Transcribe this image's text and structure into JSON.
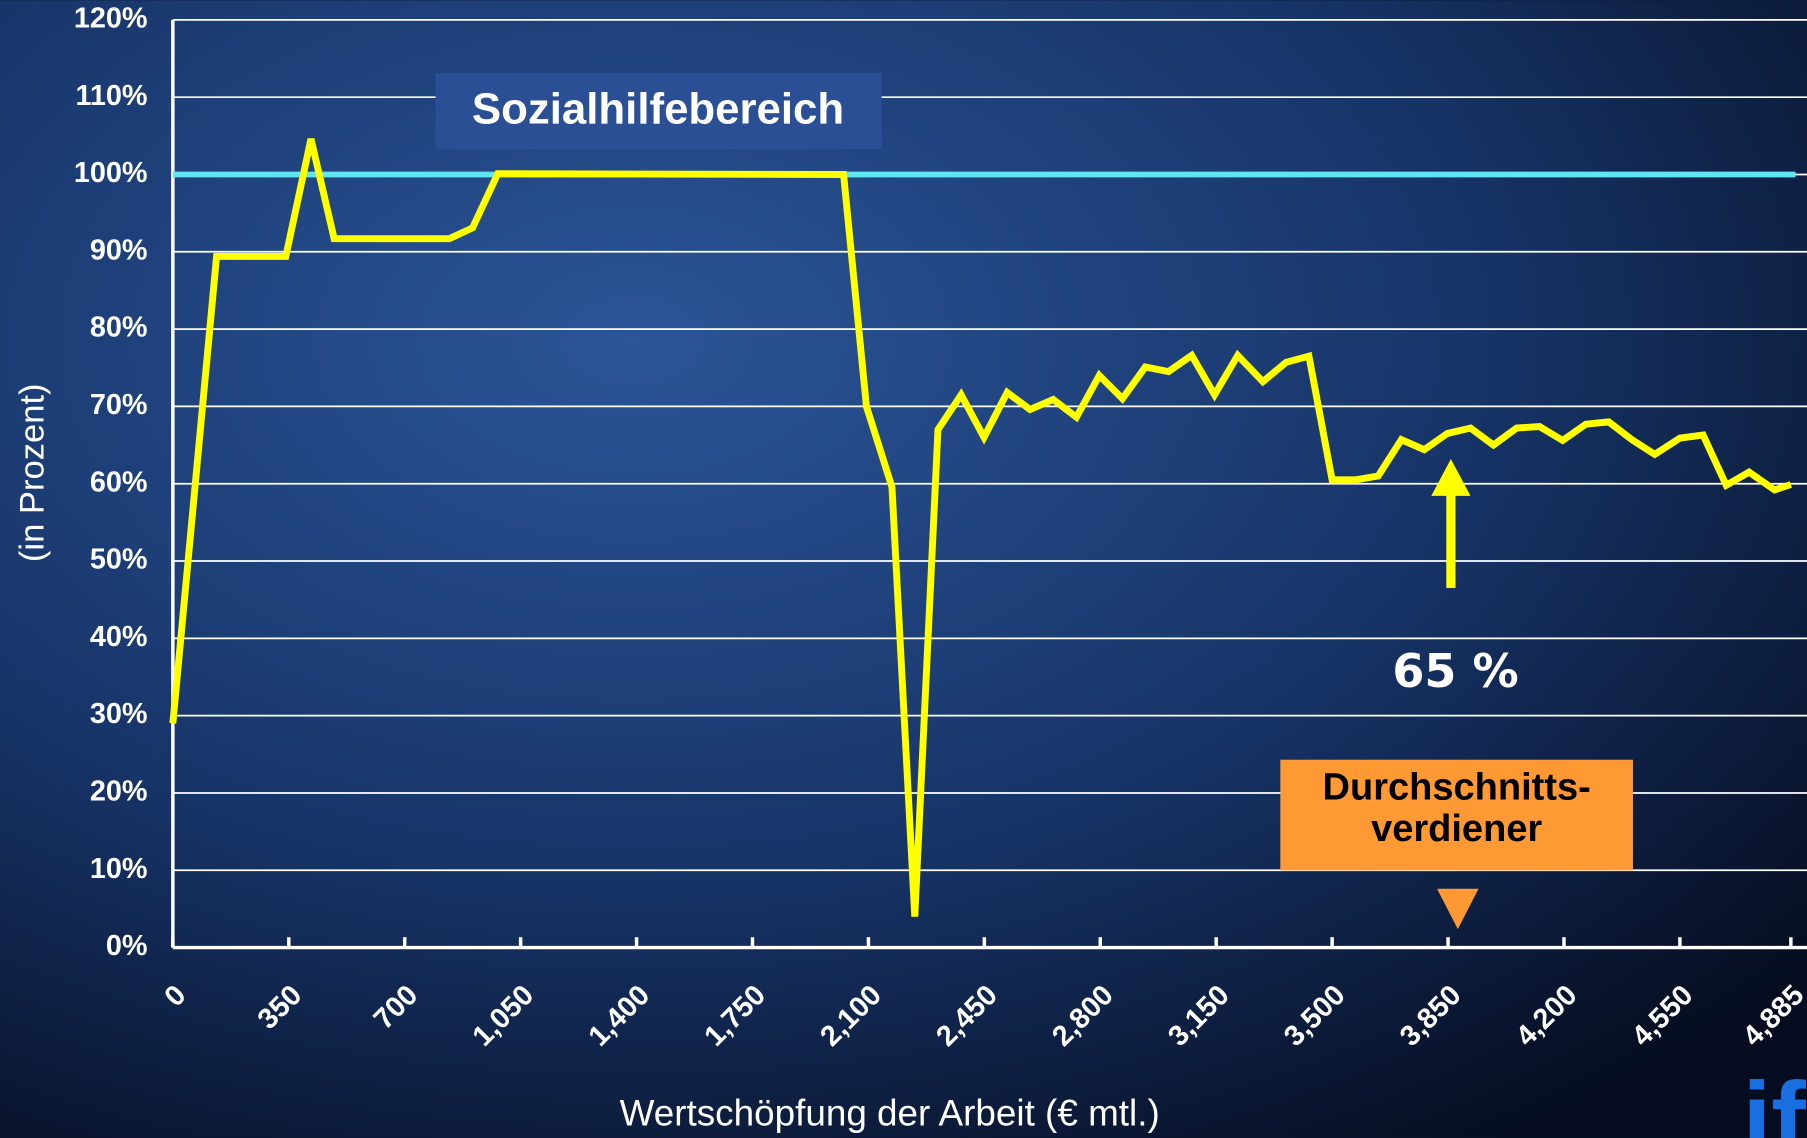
{
  "chart_data": {
    "type": "line",
    "xlabel": "Wertschöpfung  der Arbeit (€   mtl.)",
    "ylabel": "(in Prozent)",
    "xlim": [
      0,
      4885
    ],
    "ylim": [
      0,
      120
    ],
    "xticks": [
      0,
      350,
      700,
      {
        "value": 1050,
        "label": "1,050"
      },
      {
        "value": 1400,
        "label": "1,400"
      },
      {
        "value": 1750,
        "label": "1,750"
      },
      {
        "value": 2100,
        "label": "2,100"
      },
      {
        "value": 2450,
        "label": "2,450"
      },
      {
        "value": 2800,
        "label": "2,800"
      },
      {
        "value": 3150,
        "label": "3,150"
      },
      {
        "value": 3500,
        "label": "3,500"
      },
      {
        "value": 3850,
        "label": "3,850"
      },
      {
        "value": 4200,
        "label": "4,200"
      },
      {
        "value": 4550,
        "label": "4,550"
      },
      {
        "value": 4885,
        "label": "4,885"
      }
    ],
    "yticks": [
      {
        "value": 0,
        "label": "0%"
      },
      {
        "value": 10,
        "label": "10%"
      },
      {
        "value": 20,
        "label": "20%"
      },
      {
        "value": 30,
        "label": "30%"
      },
      {
        "value": 40,
        "label": "40%"
      },
      {
        "value": 50,
        "label": "50%"
      },
      {
        "value": 60,
        "label": "60%"
      },
      {
        "value": 70,
        "label": "70%"
      },
      {
        "value": 80,
        "label": "80%"
      },
      {
        "value": 90,
        "label": "90%"
      },
      {
        "value": 100,
        "label": "100%"
      },
      {
        "value": 110,
        "label": "110%"
      },
      {
        "value": 120,
        "label": "120%"
      }
    ],
    "grid": true,
    "hline": {
      "value": 100,
      "color": "#5fe6f2"
    },
    "x": [
      0,
      132,
      341,
      417,
      487,
      835,
      905,
      981,
      2025,
      2094,
      2171,
      2240,
      2310,
      2380,
      2449,
      2519,
      2588,
      2658,
      2728,
      2797,
      2867,
      2936,
      3006,
      3076,
      3145,
      3215,
      3291,
      3361,
      3430,
      3500,
      3570,
      3639,
      3709,
      3778,
      3848,
      3918,
      3987,
      4057,
      4126,
      4196,
      4266,
      4335,
      4405,
      4474,
      4550,
      4620,
      4690,
      4759,
      4836,
      4885
    ],
    "values": [
      29,
      89.4,
      89.4,
      104.6,
      91.7,
      91.7,
      93.1,
      100.1,
      100,
      70,
      59.6,
      4,
      67,
      71.5,
      66,
      71.8,
      69.6,
      70.9,
      68.6,
      74,
      71,
      75.1,
      74.5,
      76.6,
      71.5,
      76.6,
      73.2,
      75.7,
      76.5,
      60.5,
      60.5,
      61,
      65.7,
      64.4,
      66.5,
      67.2,
      65,
      67.2,
      67.4,
      65.6,
      67.7,
      68,
      65.7,
      63.8,
      65.9,
      66.3,
      59.8,
      61.5,
      59.2,
      59.9
    ],
    "color": "#ffff00",
    "annotations": {
      "region": "Sozialhilfebereich",
      "percent": "65 %",
      "average": [
        "Durchschnitts-",
        "verdiener"
      ]
    },
    "logo": "ifo"
  }
}
